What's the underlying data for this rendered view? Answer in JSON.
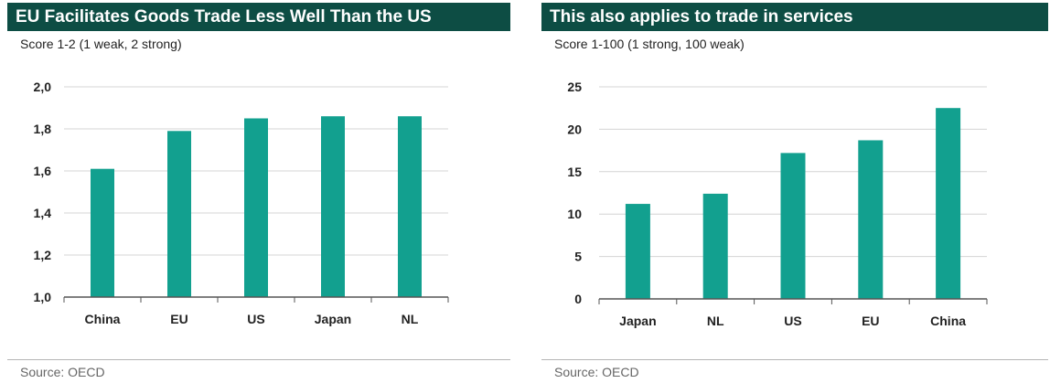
{
  "source_label": "Source: OECD",
  "chart_data": [
    {
      "type": "bar",
      "title": "EU Facilitates Goods Trade Less Well Than the US",
      "subtitle": "Score 1-2 (1 weak, 2 strong)",
      "categories": [
        "China",
        "EU",
        "US",
        "Japan",
        "NL"
      ],
      "values": [
        1.61,
        1.79,
        1.85,
        1.86,
        1.86
      ],
      "ylim": [
        1.0,
        2.0
      ],
      "yticks": [
        "1,0",
        "1,2",
        "1,4",
        "1,6",
        "1,8",
        "2,0"
      ],
      "grid": true,
      "bar_color": "#12a08f"
    },
    {
      "type": "bar",
      "title": "This also applies to trade in services",
      "subtitle": "Score 1-100 (1 strong, 100 weak)",
      "categories": [
        "Japan",
        "NL",
        "US",
        "EU",
        "China"
      ],
      "values": [
        11.2,
        12.4,
        17.2,
        18.7,
        22.5
      ],
      "ylim": [
        0,
        25
      ],
      "yticks": [
        "0",
        "5",
        "10",
        "15",
        "20",
        "25"
      ],
      "grid": true,
      "bar_color": "#12a08f"
    }
  ]
}
